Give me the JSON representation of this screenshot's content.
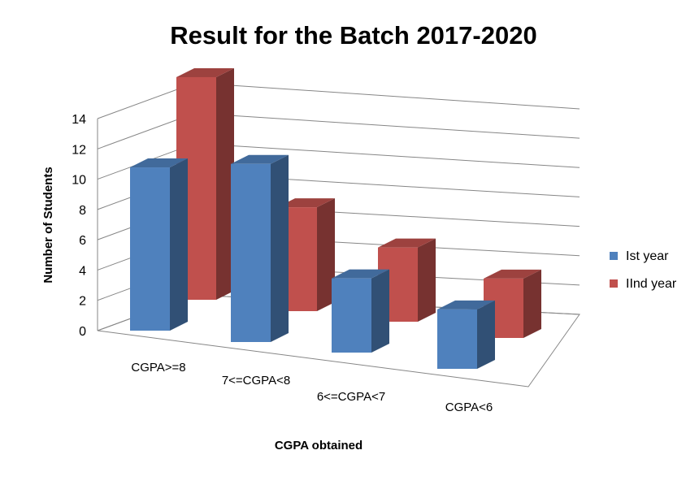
{
  "chart_data": {
    "type": "bar",
    "title": "Result for the Batch 2017-2020",
    "xlabel": "CGPA obtained",
    "ylabel": "Number of Students",
    "categories": [
      "CGPA>=8",
      "7<=CGPA<8",
      "6<=CGPA<7",
      "CGPA<6"
    ],
    "series": [
      {
        "name": "Ist year",
        "values": [
          11,
          12,
          5,
          4
        ],
        "color": "#4f81bd"
      },
      {
        "name": "IInd year",
        "values": [
          15,
          7,
          5,
          4
        ],
        "color": "#c0504d"
      }
    ],
    "ylim": [
      0,
      14
    ],
    "yticks": [
      0,
      2,
      4,
      6,
      8,
      10,
      12,
      14
    ],
    "grid": true,
    "legend": "right",
    "style": "3d-clustered-column"
  }
}
